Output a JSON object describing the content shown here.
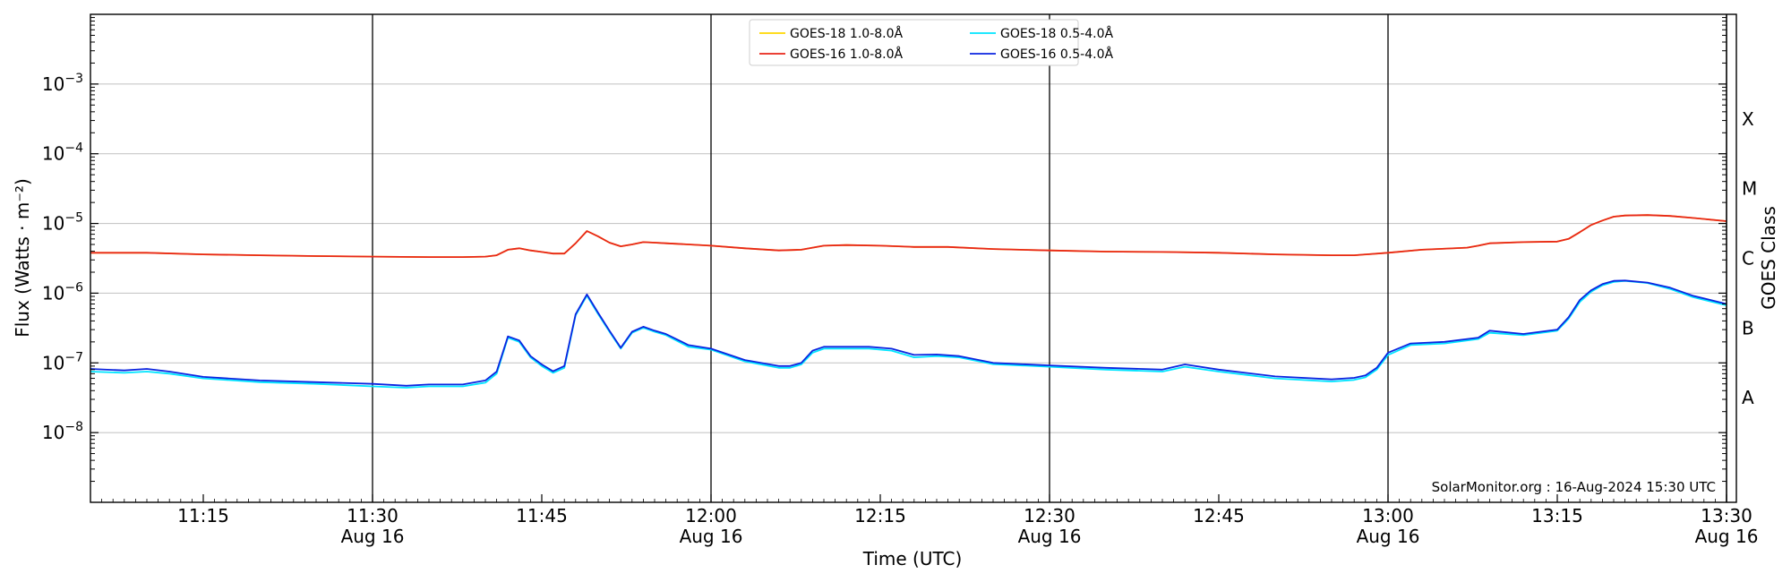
{
  "chart_data": {
    "type": "line",
    "xlabel": "Time (UTC)",
    "ylabel": "Flux (Watts · m⁻²)",
    "y2label": "GOES Class",
    "yscale": "log",
    "xlim": [
      "11:05",
      "13:30"
    ],
    "ylim": [
      1e-09,
      0.01
    ],
    "credit": "SolarMonitor.org : 16-Aug-2024 15:30 UTC",
    "legend_location": "top-center",
    "grid": "horizontal at decades; vertical lines at half hours",
    "xticks": [
      {
        "value": "11:15",
        "label": "11:15",
        "sub": ""
      },
      {
        "value": "11:30",
        "label": "11:30",
        "sub": "Aug 16"
      },
      {
        "value": "11:45",
        "label": "11:45",
        "sub": ""
      },
      {
        "value": "12:00",
        "label": "12:00",
        "sub": "Aug 16"
      },
      {
        "value": "12:15",
        "label": "12:15",
        "sub": ""
      },
      {
        "value": "12:30",
        "label": "12:30",
        "sub": "Aug 16"
      },
      {
        "value": "12:45",
        "label": "12:45",
        "sub": ""
      },
      {
        "value": "13:00",
        "label": "13:00",
        "sub": "Aug 16"
      },
      {
        "value": "13:15",
        "label": "13:15",
        "sub": ""
      },
      {
        "value": "13:30",
        "label": "13:30",
        "sub": "Aug 16"
      }
    ],
    "vlines": [
      "11:30",
      "12:00",
      "12:30",
      "13:00",
      "13:30"
    ],
    "yticks": [
      {
        "value": 0.001,
        "base": "10",
        "exp": "−3"
      },
      {
        "value": 0.0001,
        "base": "10",
        "exp": "−4"
      },
      {
        "value": 1e-05,
        "base": "10",
        "exp": "−5"
      },
      {
        "value": 1e-06,
        "base": "10",
        "exp": "−6"
      },
      {
        "value": 1e-07,
        "base": "10",
        "exp": "−7"
      },
      {
        "value": 1e-08,
        "base": "10",
        "exp": "−8"
      }
    ],
    "goes_classes": [
      {
        "label": "X",
        "value": 0.000316
      },
      {
        "label": "M",
        "value": 3.16e-05
      },
      {
        "label": "C",
        "value": 3.16e-06
      },
      {
        "label": "B",
        "value": 3.16e-07
      },
      {
        "label": "A",
        "value": 3.16e-08
      }
    ],
    "series": [
      {
        "name": "GOES-18 1.0-8.0Å",
        "color": "#ffd700",
        "x": [
          "11:05",
          "11:10",
          "11:15",
          "11:20",
          "11:25",
          "11:30",
          "11:35",
          "11:38",
          "11:40",
          "11:41",
          "11:42",
          "11:43",
          "11:44",
          "11:45",
          "11:46",
          "11:47",
          "11:48",
          "11:49",
          "11:50",
          "11:51",
          "11:52",
          "11:53",
          "11:54",
          "11:55",
          "11:56",
          "11:58",
          "12:00",
          "12:03",
          "12:06",
          "12:08",
          "12:09",
          "12:10",
          "12:12",
          "12:15",
          "12:18",
          "12:21",
          "12:25",
          "12:30",
          "12:35",
          "12:40",
          "12:45",
          "12:50",
          "12:55",
          "12:57",
          "13:00",
          "13:03",
          "13:07",
          "13:08",
          "13:09",
          "13:12",
          "13:15",
          "13:16",
          "13:17",
          "13:18",
          "13:19",
          "13:20",
          "13:21",
          "13:23",
          "13:25",
          "13:27",
          "13:30"
        ],
        "y": [
          3.8e-06,
          3.8e-06,
          3.6e-06,
          3.5e-06,
          3.4e-06,
          3.35e-06,
          3.3e-06,
          3.3e-06,
          3.35e-06,
          3.5e-06,
          4.2e-06,
          4.4e-06,
          4.1e-06,
          3.9e-06,
          3.7e-06,
          3.7e-06,
          5.2e-06,
          7.8e-06,
          6.5e-06,
          5.3e-06,
          4.7e-06,
          5e-06,
          5.4e-06,
          5.3e-06,
          5.2e-06,
          5e-06,
          4.8e-06,
          4.4e-06,
          4.1e-06,
          4.2e-06,
          4.5e-06,
          4.8e-06,
          4.9e-06,
          4.8e-06,
          4.6e-06,
          4.6e-06,
          4.3e-06,
          4.1e-06,
          3.95e-06,
          3.9e-06,
          3.8e-06,
          3.6e-06,
          3.5e-06,
          3.5e-06,
          3.8e-06,
          4.2e-06,
          4.5e-06,
          4.8e-06,
          5.2e-06,
          5.4e-06,
          5.5e-06,
          6e-06,
          7.5e-06,
          9.5e-06,
          1.1e-05,
          1.25e-05,
          1.3e-05,
          1.32e-05,
          1.28e-05,
          1.2e-05,
          1.08e-05
        ]
      },
      {
        "name": "GOES-16 1.0-8.0Å",
        "color": "#e8261a",
        "x": [
          "11:05",
          "11:10",
          "11:15",
          "11:20",
          "11:25",
          "11:30",
          "11:35",
          "11:38",
          "11:40",
          "11:41",
          "11:42",
          "11:43",
          "11:44",
          "11:45",
          "11:46",
          "11:47",
          "11:48",
          "11:49",
          "11:50",
          "11:51",
          "11:52",
          "11:53",
          "11:54",
          "11:55",
          "11:56",
          "11:58",
          "12:00",
          "12:03",
          "12:06",
          "12:08",
          "12:09",
          "12:10",
          "12:12",
          "12:15",
          "12:18",
          "12:21",
          "12:25",
          "12:30",
          "12:35",
          "12:40",
          "12:45",
          "12:50",
          "12:55",
          "12:57",
          "13:00",
          "13:03",
          "13:07",
          "13:08",
          "13:09",
          "13:12",
          "13:15",
          "13:16",
          "13:17",
          "13:18",
          "13:19",
          "13:20",
          "13:21",
          "13:23",
          "13:25",
          "13:27",
          "13:30"
        ],
        "y": [
          3.8e-06,
          3.8e-06,
          3.6e-06,
          3.5e-06,
          3.4e-06,
          3.35e-06,
          3.3e-06,
          3.3e-06,
          3.35e-06,
          3.5e-06,
          4.2e-06,
          4.4e-06,
          4.1e-06,
          3.9e-06,
          3.7e-06,
          3.7e-06,
          5.2e-06,
          7.8e-06,
          6.5e-06,
          5.3e-06,
          4.7e-06,
          5e-06,
          5.4e-06,
          5.3e-06,
          5.2e-06,
          5e-06,
          4.8e-06,
          4.4e-06,
          4.1e-06,
          4.2e-06,
          4.5e-06,
          4.8e-06,
          4.9e-06,
          4.8e-06,
          4.6e-06,
          4.6e-06,
          4.3e-06,
          4.1e-06,
          3.95e-06,
          3.9e-06,
          3.8e-06,
          3.6e-06,
          3.5e-06,
          3.5e-06,
          3.8e-06,
          4.2e-06,
          4.5e-06,
          4.8e-06,
          5.2e-06,
          5.4e-06,
          5.5e-06,
          6e-06,
          7.5e-06,
          9.5e-06,
          1.1e-05,
          1.25e-05,
          1.3e-05,
          1.32e-05,
          1.28e-05,
          1.2e-05,
          1.08e-05
        ]
      },
      {
        "name": "GOES-18 0.5-4.0Å",
        "color": "#00e5ff",
        "x": [
          "11:05",
          "11:08",
          "11:10",
          "11:12",
          "11:15",
          "11:20",
          "11:25",
          "11:30",
          "11:33",
          "11:35",
          "11:38",
          "11:40",
          "11:41",
          "11:42",
          "11:43",
          "11:44",
          "11:45",
          "11:46",
          "11:47",
          "11:48",
          "11:49",
          "11:50",
          "11:51",
          "11:52",
          "11:53",
          "11:54",
          "11:55",
          "11:56",
          "11:58",
          "12:00",
          "12:03",
          "12:06",
          "12:07",
          "12:08",
          "12:09",
          "12:10",
          "12:12",
          "12:14",
          "12:16",
          "12:18",
          "12:20",
          "12:22",
          "12:25",
          "12:30",
          "12:35",
          "12:40",
          "12:42",
          "12:45",
          "12:50",
          "12:55",
          "12:57",
          "12:58",
          "12:59",
          "13:00",
          "13:02",
          "13:05",
          "13:08",
          "13:09",
          "13:12",
          "13:15",
          "13:16",
          "13:17",
          "13:18",
          "13:19",
          "13:20",
          "13:21",
          "13:23",
          "13:25",
          "13:27",
          "13:30"
        ],
        "y": [
          7.5e-08,
          7.2e-08,
          7.5e-08,
          7e-08,
          6e-08,
          5.3e-08,
          5e-08,
          4.6e-08,
          4.4e-08,
          4.6e-08,
          4.6e-08,
          5.2e-08,
          7e-08,
          2.3e-07,
          2e-07,
          1.2e-07,
          9e-08,
          7.2e-08,
          8.5e-08,
          4.8e-07,
          9.2e-07,
          5e-07,
          2.8e-07,
          1.6e-07,
          2.7e-07,
          3.2e-07,
          2.8e-07,
          2.5e-07,
          1.7e-07,
          1.55e-07,
          1.05e-07,
          8.5e-08,
          8.5e-08,
          9.5e-08,
          1.4e-07,
          1.6e-07,
          1.6e-07,
          1.6e-07,
          1.5e-07,
          1.2e-07,
          1.25e-07,
          1.2e-07,
          9.6e-08,
          8.8e-08,
          8e-08,
          7.5e-08,
          8.8e-08,
          7.5e-08,
          6e-08,
          5.4e-08,
          5.7e-08,
          6.2e-08,
          8e-08,
          1.3e-07,
          1.8e-07,
          1.9e-07,
          2.2e-07,
          2.7e-07,
          2.5e-07,
          2.9e-07,
          4.3e-07,
          7.5e-07,
          1.05e-06,
          1.3e-06,
          1.45e-06,
          1.5e-06,
          1.4e-06,
          1.15e-06,
          8.8e-07,
          6.7e-07
        ]
      },
      {
        "name": "GOES-16 0.5-4.0Å",
        "color": "#0b24e0",
        "x": [
          "11:05",
          "11:08",
          "11:10",
          "11:12",
          "11:15",
          "11:20",
          "11:25",
          "11:30",
          "11:33",
          "11:35",
          "11:38",
          "11:40",
          "11:41",
          "11:42",
          "11:43",
          "11:44",
          "11:45",
          "11:46",
          "11:47",
          "11:48",
          "11:49",
          "11:50",
          "11:51",
          "11:52",
          "11:53",
          "11:54",
          "11:55",
          "11:56",
          "11:58",
          "12:00",
          "12:03",
          "12:06",
          "12:07",
          "12:08",
          "12:09",
          "12:10",
          "12:12",
          "12:14",
          "12:16",
          "12:18",
          "12:20",
          "12:22",
          "12:25",
          "12:30",
          "12:35",
          "12:40",
          "12:42",
          "12:45",
          "12:50",
          "12:55",
          "12:57",
          "12:58",
          "12:59",
          "13:00",
          "13:02",
          "13:05",
          "13:08",
          "13:09",
          "13:12",
          "13:15",
          "13:16",
          "13:17",
          "13:18",
          "13:19",
          "13:20",
          "13:21",
          "13:23",
          "13:25",
          "13:27",
          "13:30"
        ],
        "y": [
          8.2e-08,
          7.8e-08,
          8.2e-08,
          7.5e-08,
          6.3e-08,
          5.6e-08,
          5.3e-08,
          5e-08,
          4.7e-08,
          4.9e-08,
          4.9e-08,
          5.6e-08,
          7.5e-08,
          2.4e-07,
          2.1e-07,
          1.25e-07,
          9.5e-08,
          7.6e-08,
          9e-08,
          5e-07,
          9.6e-07,
          5.2e-07,
          2.9e-07,
          1.65e-07,
          2.8e-07,
          3.3e-07,
          2.9e-07,
          2.6e-07,
          1.8e-07,
          1.6e-07,
          1.1e-07,
          9e-08,
          9e-08,
          1e-07,
          1.5e-07,
          1.7e-07,
          1.7e-07,
          1.7e-07,
          1.6e-07,
          1.3e-07,
          1.32e-07,
          1.25e-07,
          1e-07,
          9.2e-08,
          8.5e-08,
          8e-08,
          9.5e-08,
          8e-08,
          6.4e-08,
          5.8e-08,
          6.1e-08,
          6.6e-08,
          8.5e-08,
          1.4e-07,
          1.9e-07,
          2e-07,
          2.3e-07,
          2.9e-07,
          2.6e-07,
          3e-07,
          4.5e-07,
          8e-07,
          1.1e-06,
          1.35e-06,
          1.5e-06,
          1.52e-06,
          1.42e-06,
          1.2e-06,
          9.2e-07,
          7e-07
        ]
      }
    ]
  }
}
